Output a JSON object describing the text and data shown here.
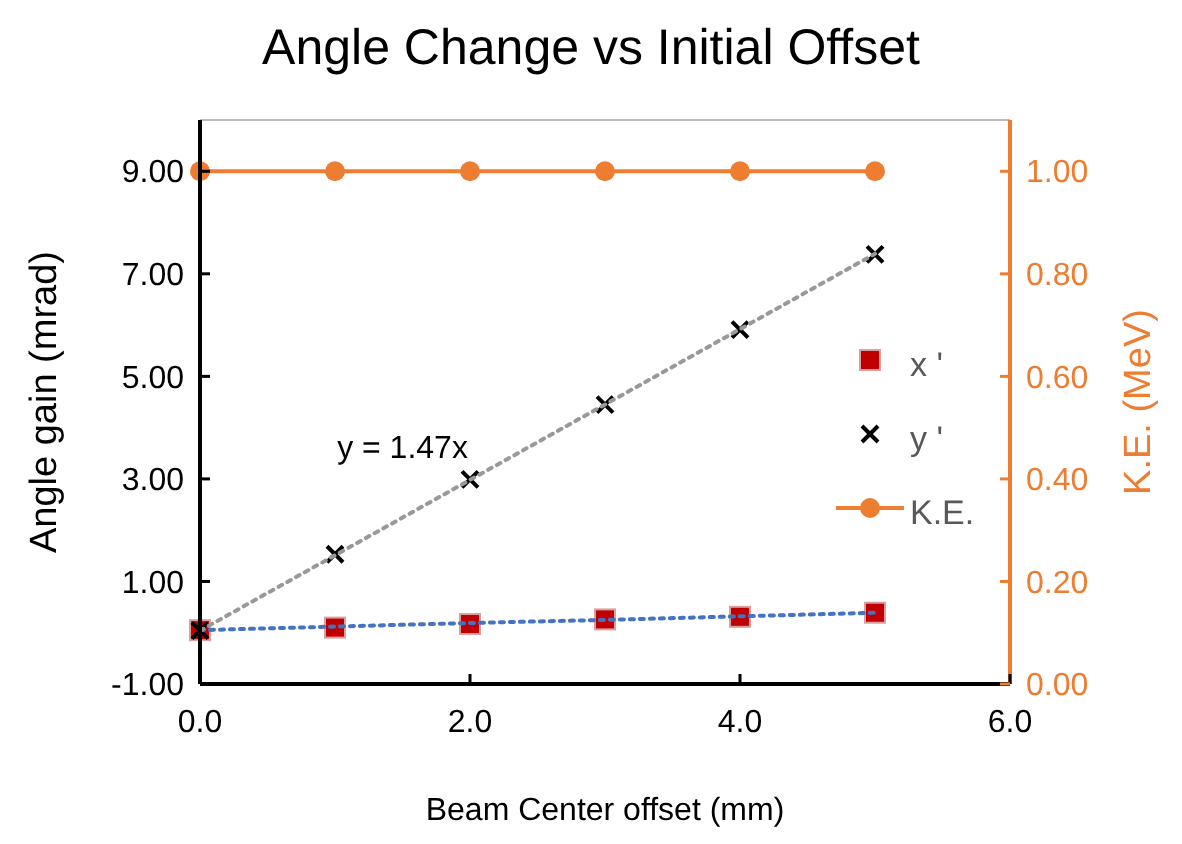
{
  "chart_data": {
    "type": "scatter",
    "title": "Angle Change vs Initial Offset",
    "xlabel": "Beam Center offset (mm)",
    "ylabel": "Angle gain (mrad)",
    "y2label": "K.E. (MeV)",
    "x": [
      0,
      1,
      2,
      3,
      4,
      5
    ],
    "series": [
      {
        "name": "x '",
        "marker": "square",
        "color": "#c00000",
        "values": [
          0.05,
          0.1,
          0.17,
          0.26,
          0.31,
          0.39
        ]
      },
      {
        "name": "y '",
        "marker": "cross",
        "color": "#000000",
        "values": [
          0.04,
          1.53,
          2.99,
          4.45,
          5.91,
          7.38
        ]
      },
      {
        "name": "K.E.",
        "type": "line",
        "marker": "circle",
        "axis": "y2",
        "color": "#ed7d31",
        "values": [
          1,
          1,
          1,
          1,
          1,
          1
        ]
      },
      {
        "type": "line",
        "marker": "none",
        "line_style": "dotted",
        "color": "#4472c4",
        "values": [
          0.05,
          0.12,
          0.19,
          0.25,
          0.32,
          0.39
        ]
      },
      {
        "type": "line",
        "marker": "none",
        "line_style": "dotted",
        "color": "#999999",
        "values": [
          0.04,
          1.51,
          2.98,
          4.45,
          5.92,
          7.39
        ]
      }
    ],
    "annotations": [
      "y = 1.47x"
    ],
    "xlim": [
      0,
      6
    ],
    "xticks": [
      {
        "value": 0,
        "label": "0.0"
      },
      {
        "value": 2,
        "label": "2.0"
      },
      {
        "value": 4,
        "label": "4.0"
      },
      {
        "value": 6,
        "label": "6.0"
      }
    ],
    "ylim": [
      -1,
      10
    ],
    "yticks": [
      {
        "value": -1,
        "label": "-1.00"
      },
      {
        "value": 1,
        "label": "1.00"
      },
      {
        "value": 3,
        "label": "3.00"
      },
      {
        "value": 5,
        "label": "5.00"
      },
      {
        "value": 7,
        "label": "7.00"
      },
      {
        "value": 9,
        "label": "9.00"
      }
    ],
    "y2lim": [
      0,
      1.1
    ],
    "y2ticks": [
      {
        "value": 0,
        "label": "0.00"
      },
      {
        "value": 0.2,
        "label": "0.20"
      },
      {
        "value": 0.4,
        "label": "0.40"
      },
      {
        "value": 0.6,
        "label": "0.60"
      },
      {
        "value": 0.8,
        "label": "0.80"
      },
      {
        "value": 1,
        "label": "1.00"
      }
    ],
    "grid": false,
    "legend": "right"
  }
}
